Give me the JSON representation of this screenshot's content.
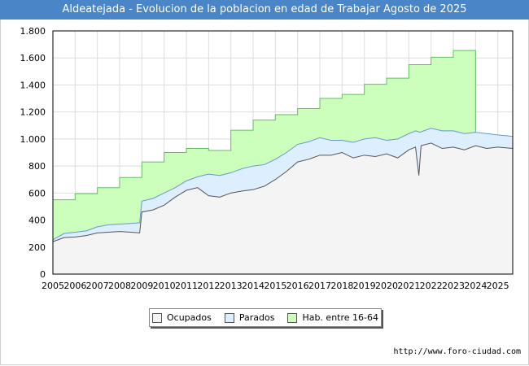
{
  "header": {
    "title": "Aldeatejada - Evolucion de la poblacion en edad de Trabajar Agosto de 2025"
  },
  "footer": {
    "source": "http://www.foro-ciudad.com"
  },
  "colors": {
    "title_bg": "#4a86c7",
    "ocupados": "#f4f4f4",
    "parados": "#ddeeff",
    "hab": "#ccffbb",
    "line_hab": "#66bb66",
    "line_ocupados": "#555555",
    "line_parados": "#6699cc"
  },
  "chart_data": {
    "type": "area",
    "title": "Aldeatejada - Evolucion de la poblacion en edad de Trabajar Agosto de 2025",
    "xlim": [
      2005,
      2025.67
    ],
    "ylim": [
      0,
      1800
    ],
    "y_ticks": [
      0,
      200,
      400,
      600,
      800,
      1000,
      1200,
      1400,
      1600,
      1800
    ],
    "y_tick_labels": [
      "0",
      "200",
      "400",
      "600",
      "800",
      "1.000",
      "1.200",
      "1.400",
      "1.600",
      "1.800"
    ],
    "x_tick_labels": [
      "2005",
      "2006",
      "2007",
      "2008",
      "2009",
      "2010",
      "2011",
      "2012",
      "2013",
      "2014",
      "2015",
      "2016",
      "2017",
      "2018",
      "2019",
      "2020",
      "2021",
      "2022",
      "2023",
      "2024",
      "2025"
    ],
    "grid": true,
    "legend_position": "bottom",
    "series": [
      {
        "name": "Hab. entre 16-64",
        "steps": [
          {
            "from": 2005,
            "to": 2006,
            "value": 550
          },
          {
            "from": 2006,
            "to": 2007,
            "value": 595
          },
          {
            "from": 2007,
            "to": 2008,
            "value": 640
          },
          {
            "from": 2008,
            "to": 2009,
            "value": 715
          },
          {
            "from": 2009,
            "to": 2010,
            "value": 830
          },
          {
            "from": 2010,
            "to": 2011,
            "value": 900
          },
          {
            "from": 2011,
            "to": 2012,
            "value": 930
          },
          {
            "from": 2012,
            "to": 2013,
            "value": 915
          },
          {
            "from": 2013,
            "to": 2014,
            "value": 1065
          },
          {
            "from": 2014,
            "to": 2015,
            "value": 1140
          },
          {
            "from": 2015,
            "to": 2016,
            "value": 1180
          },
          {
            "from": 2016,
            "to": 2017,
            "value": 1225
          },
          {
            "from": 2017,
            "to": 2018,
            "value": 1300
          },
          {
            "from": 2018,
            "to": 2019,
            "value": 1330
          },
          {
            "from": 2019,
            "to": 2020,
            "value": 1405
          },
          {
            "from": 2020,
            "to": 2021,
            "value": 1450
          },
          {
            "from": 2021,
            "to": 2022,
            "value": 1550
          },
          {
            "from": 2022,
            "to": 2023,
            "value": 1605
          },
          {
            "from": 2023,
            "to": 2024,
            "value": 1655
          }
        ]
      },
      {
        "name": "Parados",
        "x": [
          2005,
          2005.5,
          2006,
          2006.5,
          2007,
          2007.5,
          2008,
          2008.5,
          2008.9,
          2009,
          2009.5,
          2010,
          2010.5,
          2011,
          2011.5,
          2012,
          2012.5,
          2013,
          2013.5,
          2014,
          2014.5,
          2015,
          2015.5,
          2016,
          2016.5,
          2017,
          2017.5,
          2018,
          2018.5,
          2019,
          2019.5,
          2020,
          2020.5,
          2021,
          2021.3,
          2021.5,
          2022,
          2022.5,
          2023,
          2023.5,
          2024,
          2024.5,
          2025,
          2025.67
        ],
        "values": [
          255,
          300,
          310,
          320,
          350,
          365,
          370,
          375,
          380,
          540,
          560,
          600,
          640,
          690,
          720,
          740,
          730,
          750,
          780,
          800,
          810,
          850,
          900,
          960,
          980,
          1010,
          990,
          990,
          975,
          1000,
          1010,
          990,
          1000,
          1040,
          1060,
          1050,
          1080,
          1060,
          1060,
          1040,
          1050,
          1040,
          1030,
          1020
        ]
      },
      {
        "name": "Ocupados",
        "x": [
          2005,
          2005.5,
          2006,
          2006.5,
          2007,
          2007.5,
          2008,
          2008.5,
          2008.9,
          2009,
          2009.5,
          2010,
          2010.5,
          2011,
          2011.5,
          2012,
          2012.5,
          2013,
          2013.5,
          2014,
          2014.5,
          2015,
          2015.5,
          2016,
          2016.5,
          2017,
          2017.5,
          2018,
          2018.5,
          2019,
          2019.5,
          2020,
          2020.5,
          2021,
          2021.3,
          2021.45,
          2021.55,
          2022,
          2022.5,
          2023,
          2023.5,
          2024,
          2024.5,
          2025,
          2025.67
        ],
        "values": [
          240,
          270,
          275,
          285,
          305,
          310,
          315,
          310,
          305,
          460,
          475,
          510,
          570,
          620,
          640,
          580,
          570,
          600,
          615,
          625,
          650,
          700,
          760,
          830,
          850,
          880,
          880,
          900,
          860,
          880,
          870,
          890,
          860,
          920,
          940,
          730,
          950,
          970,
          930,
          940,
          920,
          950,
          930,
          940,
          930
        ]
      }
    ]
  },
  "legend": {
    "items": [
      {
        "label": "Ocupados",
        "color": "#f4f4f4"
      },
      {
        "label": "Parados",
        "color": "#ddeeff"
      },
      {
        "label": "Hab. entre 16-64",
        "color": "#ccffbb"
      }
    ]
  }
}
